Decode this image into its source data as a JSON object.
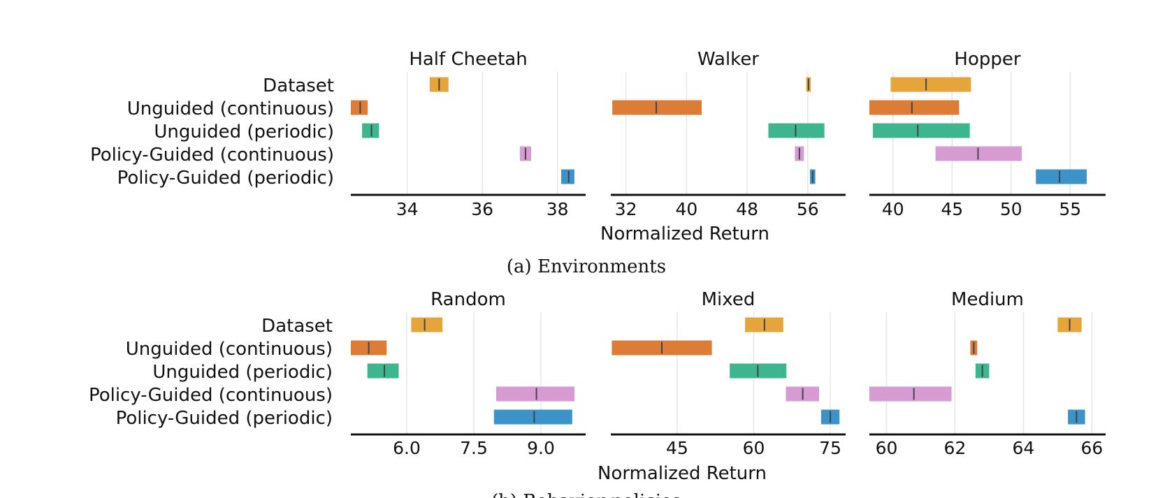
{
  "figure": {
    "method_labels": [
      "Dataset",
      "Unguided (continuous)",
      "Unguided (periodic)",
      "Policy-Guided (continuous)",
      "Policy-Guided (periodic)"
    ],
    "colors": [
      "#E6A53A",
      "#DD7C37",
      "#3DB58F",
      "#D79BD3",
      "#3B93C8"
    ],
    "captions": {
      "a": "(a) Environments",
      "b": "(b) Behavior policies"
    }
  },
  "chart_data": [
    {
      "type": "range-bar",
      "group": "a",
      "title": "Half Cheetah",
      "xlabel": "Normalized Return",
      "xlim": [
        32.5,
        38.75
      ],
      "ticks": [
        34,
        36,
        38
      ],
      "series": [
        {
          "name": "Dataset",
          "low": 34.6,
          "high": 35.1,
          "mean": 34.85
        },
        {
          "name": "Unguided (continuous)",
          "low": 32.5,
          "high": 32.95,
          "mean": 32.75
        },
        {
          "name": "Unguided (periodic)",
          "low": 32.8,
          "high": 33.25,
          "mean": 33.05
        },
        {
          "name": "Policy-Guided (continuous)",
          "low": 37.0,
          "high": 37.3,
          "mean": 37.15
        },
        {
          "name": "Policy-Guided (periodic)",
          "low": 38.1,
          "high": 38.45,
          "mean": 38.3
        }
      ]
    },
    {
      "type": "range-bar",
      "group": "a",
      "title": "Walker",
      "xlabel": "Normalized Return",
      "xlim": [
        30,
        61
      ],
      "ticks": [
        32,
        40,
        48,
        56
      ],
      "series": [
        {
          "name": "Dataset",
          "low": 55.8,
          "high": 56.4,
          "mean": 56.1
        },
        {
          "name": "Unguided (continuous)",
          "low": 30.2,
          "high": 42.0,
          "mean": 36.0
        },
        {
          "name": "Unguided (periodic)",
          "low": 50.8,
          "high": 58.2,
          "mean": 54.4
        },
        {
          "name": "Policy-Guided (continuous)",
          "low": 54.3,
          "high": 55.5,
          "mean": 54.9
        },
        {
          "name": "Policy-Guided (periodic)",
          "low": 56.3,
          "high": 57.0,
          "mean": 56.65
        }
      ]
    },
    {
      "type": "range-bar",
      "group": "a",
      "title": "Hopper",
      "xlabel": "Normalized Return",
      "xlim": [
        38,
        58
      ],
      "ticks": [
        40,
        45,
        50,
        55
      ],
      "series": [
        {
          "name": "Dataset",
          "low": 39.8,
          "high": 46.6,
          "mean": 42.8
        },
        {
          "name": "Unguided (continuous)",
          "low": 38.0,
          "high": 45.6,
          "mean": 41.6
        },
        {
          "name": "Unguided (periodic)",
          "low": 38.3,
          "high": 46.5,
          "mean": 42.1
        },
        {
          "name": "Policy-Guided (continuous)",
          "low": 43.6,
          "high": 50.9,
          "mean": 47.2
        },
        {
          "name": "Policy-Guided (periodic)",
          "low": 52.1,
          "high": 56.4,
          "mean": 54.1
        }
      ]
    },
    {
      "type": "range-bar",
      "group": "b",
      "title": "Random",
      "xlabel": "Normalized Return",
      "xlim": [
        4.75,
        10.0
      ],
      "ticks": [
        "6.0",
        "7.5",
        "9.0"
      ],
      "series": [
        {
          "name": "Dataset",
          "low": 6.1,
          "high": 6.8,
          "mean": 6.4
        },
        {
          "name": "Unguided (continuous)",
          "low": 4.75,
          "high": 5.55,
          "mean": 5.15
        },
        {
          "name": "Unguided (periodic)",
          "low": 5.12,
          "high": 5.82,
          "mean": 5.5
        },
        {
          "name": "Policy-Guided (continuous)",
          "low": 8.0,
          "high": 9.75,
          "mean": 8.9
        },
        {
          "name": "Policy-Guided (periodic)",
          "low": 7.95,
          "high": 9.7,
          "mean": 8.85
        }
      ]
    },
    {
      "type": "range-bar",
      "group": "b",
      "title": "Mixed",
      "xlabel": "Normalized Return",
      "xlim": [
        32,
        78
      ],
      "ticks": [
        45,
        60,
        75
      ],
      "series": [
        {
          "name": "Dataset",
          "low": 58.3,
          "high": 65.8,
          "mean": 62.1
        },
        {
          "name": "Unguided (continuous)",
          "low": 32.2,
          "high": 51.8,
          "mean": 42.0
        },
        {
          "name": "Unguided (periodic)",
          "low": 55.3,
          "high": 66.4,
          "mean": 60.8
        },
        {
          "name": "Policy-Guided (continuous)",
          "low": 66.3,
          "high": 72.8,
          "mean": 69.6
        },
        {
          "name": "Policy-Guided (periodic)",
          "low": 73.2,
          "high": 76.8,
          "mean": 75.0
        }
      ]
    },
    {
      "type": "range-bar",
      "group": "b",
      "title": "Medium",
      "xlabel": "Normalized Return",
      "xlim": [
        59.5,
        66.4
      ],
      "ticks": [
        60,
        62,
        64,
        66
      ],
      "series": [
        {
          "name": "Dataset",
          "low": 65.0,
          "high": 65.7,
          "mean": 65.35
        },
        {
          "name": "Unguided (continuous)",
          "low": 62.45,
          "high": 62.65,
          "mean": 62.55
        },
        {
          "name": "Unguided (periodic)",
          "low": 62.6,
          "high": 63.0,
          "mean": 62.8
        },
        {
          "name": "Policy-Guided (continuous)",
          "low": 59.5,
          "high": 61.9,
          "mean": 60.8
        },
        {
          "name": "Policy-Guided (periodic)",
          "low": 65.3,
          "high": 65.8,
          "mean": 65.55
        }
      ]
    }
  ]
}
